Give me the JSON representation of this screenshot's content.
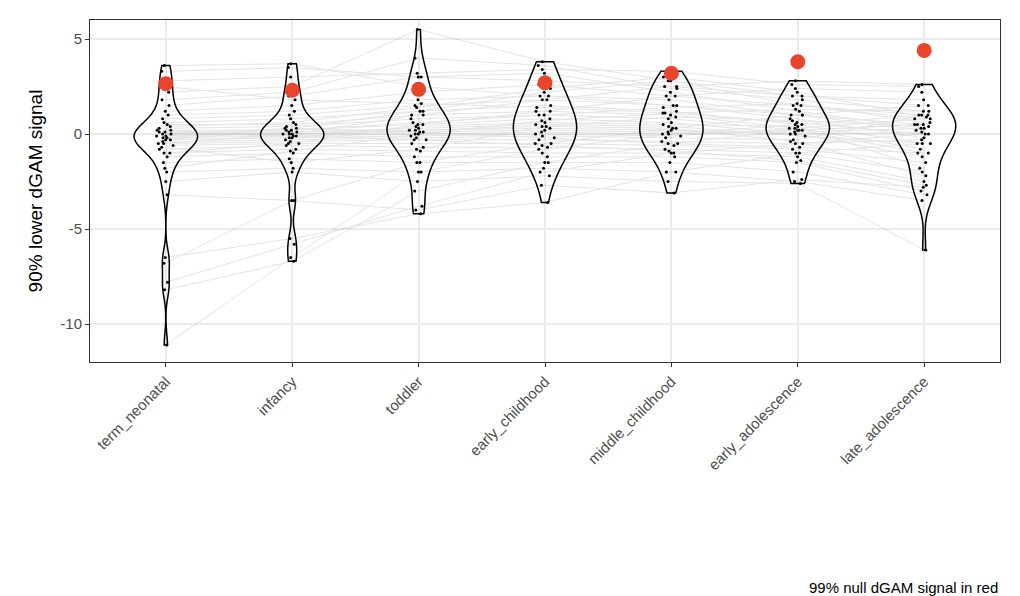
{
  "chart_data": {
    "type": "violin",
    "y_label": "90% lower dGAM signal",
    "categories": [
      "term_neonatal",
      "infancy",
      "toddler",
      "early_childhood",
      "middle_childhood",
      "early_adolescence",
      "late_adolescence"
    ],
    "ylim": [
      -12,
      6
    ],
    "yticks": [
      -10,
      -5,
      0,
      5
    ],
    "grid": true,
    "annotations": [
      "99% null dGAM signal in red"
    ],
    "series": [
      {
        "type": "violin",
        "color": "#000000",
        "marker": "circle",
        "line_style": "solid",
        "values": [
          [
            3.6,
            3.7,
            2.5,
            2.0,
            1.5,
            1.0,
            0.5
          ],
          [
            3.3,
            3.5,
            3.0,
            2.8,
            2.5,
            2.0,
            1.5
          ],
          [
            2.8,
            3.0,
            3.2,
            3.4,
            3.3,
            2.6,
            2.5
          ],
          [
            2.2,
            2.5,
            5.5,
            3.8,
            2.8,
            1.5,
            0.8
          ],
          [
            1.8,
            2.2,
            4.0,
            3.6,
            2.4,
            1.8,
            1.2
          ],
          [
            1.5,
            2.0,
            3.0,
            3.2,
            2.2,
            1.2,
            0.3
          ],
          [
            1.2,
            1.5,
            2.2,
            2.6,
            2.0,
            1.5,
            1.0
          ],
          [
            1.0,
            1.2,
            1.8,
            2.0,
            1.8,
            1.0,
            0.2
          ],
          [
            0.8,
            1.0,
            1.5,
            1.8,
            1.5,
            0.8,
            -0.2
          ],
          [
            0.6,
            0.8,
            1.2,
            1.5,
            1.2,
            0.5,
            -0.5
          ],
          [
            0.5,
            0.5,
            1.0,
            1.2,
            1.0,
            0.3,
            -0.8
          ],
          [
            0.3,
            0.4,
            0.8,
            1.0,
            0.8,
            0.2,
            -1.0
          ],
          [
            0.2,
            0.2,
            0.5,
            0.8,
            0.6,
            0.0,
            -1.2
          ],
          [
            0.1,
            0.1,
            0.3,
            0.5,
            0.4,
            -0.1,
            -0.5
          ],
          [
            0.0,
            0.0,
            0.2,
            0.3,
            0.2,
            0.0,
            0.1
          ],
          [
            -0.1,
            0.0,
            0.1,
            0.2,
            0.1,
            0.1,
            0.3
          ],
          [
            -0.2,
            -0.1,
            0.0,
            0.1,
            0.0,
            0.2,
            0.5
          ],
          [
            -0.3,
            -0.2,
            -0.1,
            0.0,
            -0.1,
            0.3,
            0.8
          ],
          [
            -0.4,
            -0.3,
            -0.2,
            -0.1,
            -0.2,
            -0.3,
            1.0
          ],
          [
            -0.5,
            -0.4,
            -0.3,
            -0.3,
            -0.4,
            -0.5,
            -0.3
          ],
          [
            -0.6,
            -0.5,
            -0.5,
            -0.5,
            -0.6,
            -0.8,
            -1.5
          ],
          [
            -0.8,
            -0.6,
            -0.7,
            -0.7,
            -0.8,
            -1.0,
            -2.0
          ],
          [
            -1.0,
            -0.8,
            -0.9,
            -1.0,
            -1.0,
            -1.2,
            -2.5
          ],
          [
            -1.2,
            -1.0,
            -1.2,
            -1.2,
            -1.2,
            -1.5,
            -3.0
          ],
          [
            -1.5,
            -1.3,
            -1.5,
            -1.5,
            -1.5,
            -2.0,
            -3.2
          ],
          [
            -2.0,
            -1.8,
            -2.0,
            -1.8,
            -2.0,
            -2.5,
            -3.5
          ],
          [
            -2.5,
            -2.0,
            -2.5,
            -2.2,
            -2.5,
            -2.6,
            -6.1
          ],
          [
            -3.2,
            -3.5,
            -4.0,
            -2.7,
            -3.1,
            -2.4,
            -2.8
          ],
          [
            -6.5,
            -5.5,
            -4.2,
            -3.6,
            -2.0,
            -1.0,
            -0.5
          ],
          [
            -7.8,
            -5.8,
            -3.8,
            -2.0,
            -1.0,
            -0.5,
            0.0
          ],
          [
            -8.2,
            -6.7,
            -3.0,
            -1.5,
            -0.5,
            0.2,
            0.5
          ],
          [
            -11.1,
            -6.5,
            -2.0,
            -0.8,
            0.0,
            0.5,
            1.0
          ],
          [
            -6.8,
            -3.5,
            -1.5,
            -0.5,
            0.3,
            1.0,
            1.5
          ],
          [
            -0.2,
            0.3,
            1.2,
            2.2,
            2.8,
            2.0,
            1.8
          ],
          [
            -0.5,
            0.0,
            1.0,
            1.8,
            2.5,
            2.8,
            2.6
          ],
          [
            -1.0,
            -0.5,
            0.5,
            1.2,
            2.0,
            2.4,
            2.2
          ],
          [
            0.4,
            0.6,
            1.4,
            2.4,
            3.0,
            2.2,
            0.9
          ],
          [
            -0.3,
            0.2,
            0.6,
            1.0,
            1.4,
            1.6,
            0.6
          ],
          [
            0.2,
            -0.2,
            0.4,
            0.6,
            0.5,
            0.4,
            -1.8
          ],
          [
            -0.1,
            0.1,
            0.2,
            0.4,
            0.3,
            -0.4,
            -2.2
          ],
          [
            0.0,
            0.3,
            0.1,
            -0.2,
            -0.5,
            -0.7,
            -1.0
          ],
          [
            0.1,
            -0.1,
            -0.3,
            -0.6,
            -0.9,
            -1.4,
            -2.7
          ],
          [
            2.5,
            1.8,
            1.6,
            1.4,
            1.1,
            0.6,
            0.0
          ],
          [
            -1.8,
            -0.9,
            0.0,
            0.7,
            1.1,
            1.3,
            1.2
          ],
          [
            -0.7,
            -1.5,
            -0.8,
            0.4,
            0.9,
            0.7,
            0.4
          ]
        ]
      },
      {
        "type": "scatter",
        "color": "#e8452a",
        "marker": "circle",
        "values": [
          2.65,
          2.3,
          2.35,
          2.7,
          3.2,
          3.8,
          4.4
        ]
      }
    ]
  }
}
